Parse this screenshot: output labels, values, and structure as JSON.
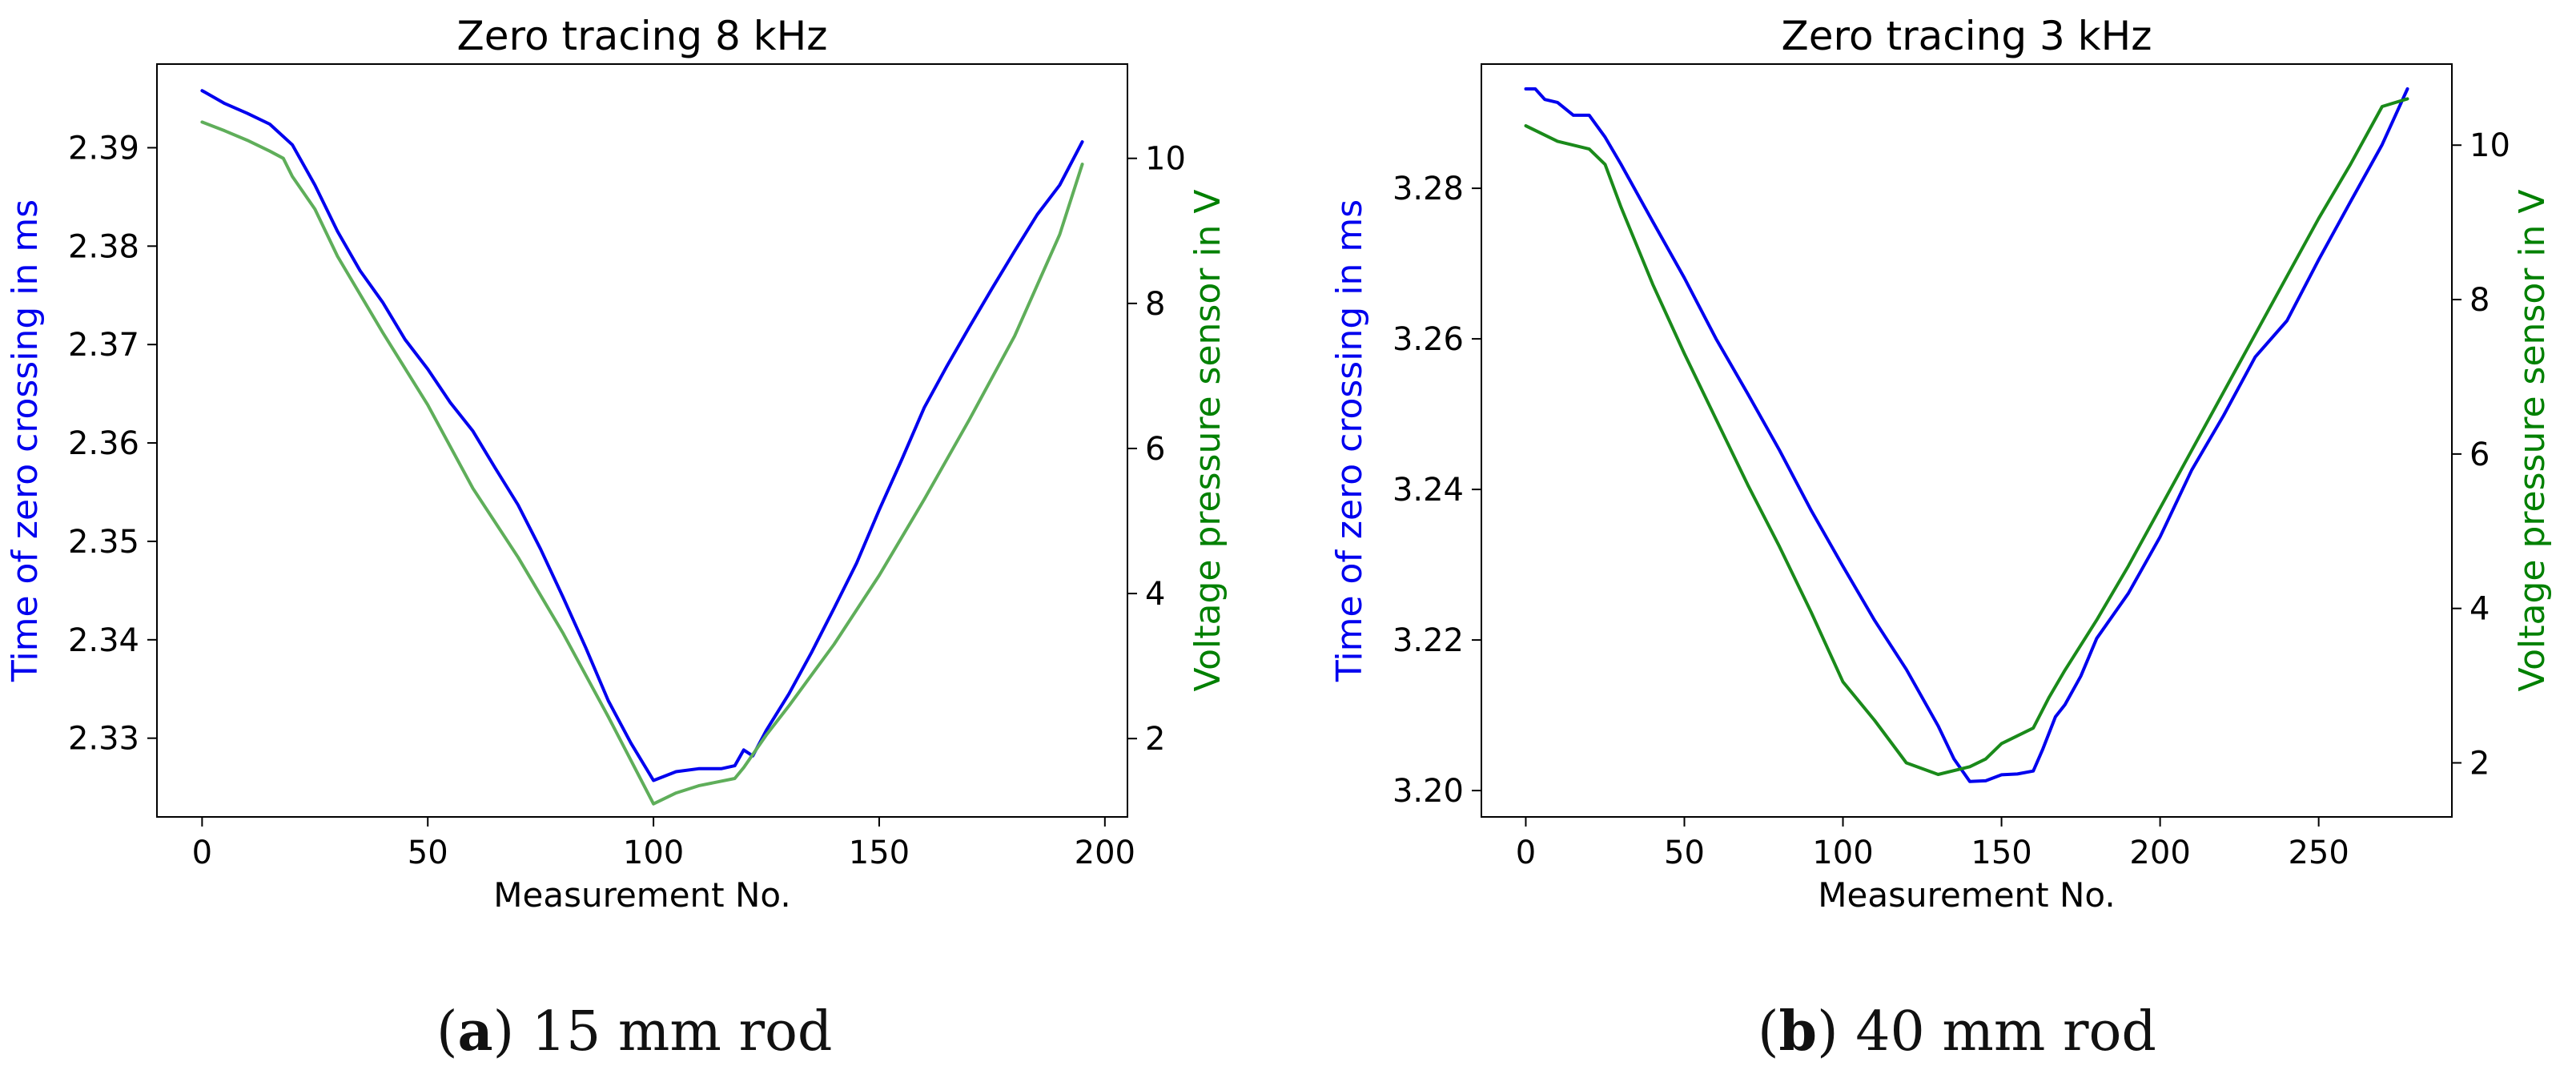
{
  "chart_data": [
    {
      "type": "line",
      "title": "Zero tracing 8 kHz",
      "xlabel": "Measurement No.",
      "ylabel": "Time of zero crossing in ms",
      "y2label": "Voltage pressure sensor in V",
      "xlim": [
        -10,
        205
      ],
      "xticks": [
        0,
        50,
        100,
        150,
        200
      ],
      "ylim": [
        2.322,
        2.3985
      ],
      "yticks": [
        2.33,
        2.34,
        2.35,
        2.36,
        2.37,
        2.38,
        2.39
      ],
      "ytick_labels": [
        "2.33",
        "2.34",
        "2.35",
        "2.36",
        "2.37",
        "2.38",
        "2.39"
      ],
      "y2lim": [
        0.92,
        11.3
      ],
      "y2ticks": [
        2,
        4,
        6,
        8,
        10
      ],
      "grid": false,
      "series": [
        {
          "name": "Time of zero crossing",
          "axis": "left",
          "color": "#0000ee",
          "x": [
            0,
            5,
            10,
            15,
            20,
            25,
            30,
            35,
            40,
            45,
            50,
            55,
            60,
            65,
            70,
            75,
            80,
            85,
            90,
            95,
            100,
            105,
            110,
            115,
            118,
            120,
            122,
            125,
            130,
            135,
            140,
            145,
            150,
            155,
            160,
            165,
            170,
            175,
            180,
            185,
            190,
            195
          ],
          "values": [
            2.3958,
            2.3945,
            2.3935,
            2.3924,
            2.3903,
            2.3862,
            2.3815,
            2.3775,
            2.3743,
            2.3705,
            2.3675,
            2.3641,
            2.3612,
            2.3574,
            2.3537,
            2.3492,
            2.3443,
            2.3392,
            2.3338,
            2.3295,
            2.3257,
            2.3266,
            2.3269,
            2.3269,
            2.3272,
            2.3288,
            2.3282,
            2.3308,
            2.3345,
            2.3387,
            2.3432,
            2.3478,
            2.3532,
            2.3583,
            2.3636,
            2.3678,
            2.3718,
            2.3757,
            2.3795,
            2.3832,
            2.3862,
            2.3906
          ]
        },
        {
          "name": "Voltage pressure sensor",
          "axis": "right",
          "color": "#5fae5a",
          "x": [
            0,
            5,
            10,
            15,
            18,
            20,
            25,
            30,
            40,
            50,
            60,
            70,
            80,
            90,
            100,
            105,
            110,
            118,
            120,
            125,
            130,
            140,
            150,
            160,
            170,
            180,
            190,
            195
          ],
          "values": [
            10.5,
            10.38,
            10.25,
            10.1,
            10.0,
            9.75,
            9.3,
            8.65,
            7.6,
            6.6,
            5.45,
            4.5,
            3.45,
            2.3,
            1.1,
            1.25,
            1.35,
            1.45,
            1.6,
            2.05,
            2.45,
            3.3,
            4.25,
            5.3,
            6.4,
            7.55,
            8.95,
            9.92
          ]
        }
      ]
    },
    {
      "type": "line",
      "title": "Zero tracing 3 kHz",
      "xlabel": "Measurement No.",
      "ylabel": "Time of zero crossing in ms",
      "y2label": "Voltage pressure sensor in V",
      "xlim": [
        -14,
        292
      ],
      "xticks": [
        0,
        50,
        100,
        150,
        200,
        250
      ],
      "ylim": [
        3.1965,
        3.2965
      ],
      "yticks": [
        3.2,
        3.22,
        3.24,
        3.26,
        3.28
      ],
      "ytick_labels": [
        "3.20",
        "3.22",
        "3.24",
        "3.26",
        "3.28"
      ],
      "y2lim": [
        1.3,
        11.05
      ],
      "y2ticks": [
        2,
        4,
        6,
        8,
        10
      ],
      "grid": false,
      "series": [
        {
          "name": "Time of zero crossing",
          "axis": "left",
          "color": "#0000ee",
          "x": [
            0,
            3,
            6,
            10,
            15,
            20,
            25,
            30,
            40,
            50,
            60,
            70,
            80,
            90,
            100,
            110,
            120,
            130,
            135,
            140,
            145,
            150,
            155,
            160,
            163,
            167,
            170,
            175,
            180,
            190,
            200,
            210,
            220,
            230,
            240,
            250,
            260,
            270,
            278
          ],
          "values": [
            3.2932,
            3.2932,
            3.2918,
            3.2914,
            3.2897,
            3.2897,
            3.2868,
            3.2832,
            3.2756,
            3.2681,
            3.26,
            3.2527,
            3.2452,
            3.2372,
            3.2298,
            3.2226,
            3.2161,
            3.2086,
            3.2042,
            3.2012,
            3.2013,
            3.2021,
            3.2022,
            3.2026,
            3.2055,
            3.2098,
            3.2114,
            3.2152,
            3.2202,
            3.2262,
            3.2337,
            3.2426,
            3.2498,
            3.2576,
            3.2624,
            3.2705,
            3.2782,
            3.2858,
            3.2932
          ]
        },
        {
          "name": "Voltage pressure sensor",
          "axis": "right",
          "color": "#1a8a1a",
          "x": [
            0,
            10,
            20,
            25,
            30,
            40,
            50,
            60,
            70,
            80,
            90,
            100,
            110,
            120,
            130,
            140,
            145,
            150,
            160,
            165,
            170,
            180,
            190,
            200,
            210,
            220,
            230,
            240,
            250,
            260,
            270,
            278
          ],
          "values": [
            10.25,
            10.05,
            9.95,
            9.75,
            9.2,
            8.2,
            7.3,
            6.45,
            5.6,
            4.8,
            3.95,
            3.05,
            2.55,
            2.0,
            1.85,
            1.95,
            2.05,
            2.25,
            2.45,
            2.85,
            3.2,
            3.85,
            4.55,
            5.3,
            6.05,
            6.8,
            7.55,
            8.3,
            9.05,
            9.75,
            10.5,
            10.6
          ]
        }
      ]
    }
  ],
  "captions": [
    {
      "label": "a",
      "text": "15 mm rod"
    },
    {
      "label": "b",
      "text": "40 mm rod"
    }
  ]
}
